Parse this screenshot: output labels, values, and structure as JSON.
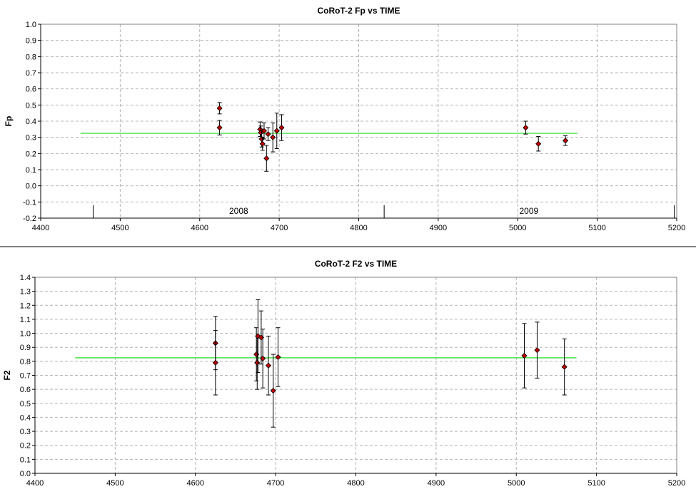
{
  "chart_data": [
    {
      "type": "scatter",
      "title": "CoRoT-2 Fp vs TIME",
      "xlabel": "",
      "ylabel": "Fp",
      "xlim": [
        4400,
        5200
      ],
      "ylim": [
        -0.2,
        1.0
      ],
      "x_ticks": [
        "4400",
        "4500",
        "4600",
        "4700",
        "4800",
        "4900",
        "5000",
        "5100",
        "5200"
      ],
      "y_ticks": [
        "-0.2",
        "-0.1",
        "0.0",
        "0.1",
        "0.2",
        "0.3",
        "0.4",
        "0.5",
        "0.6",
        "0.7",
        "0.8",
        "0.9",
        "1.0"
      ],
      "grid": true,
      "points": [
        {
          "x": 4625,
          "y": 0.48,
          "err": 0.035
        },
        {
          "x": 4625,
          "y": 0.36,
          "err": 0.045
        },
        {
          "x": 4676,
          "y": 0.35,
          "err": 0.045
        },
        {
          "x": 4677,
          "y": 0.33,
          "err": 0.04
        },
        {
          "x": 4678,
          "y": 0.29,
          "err": 0.05
        },
        {
          "x": 4679,
          "y": 0.26,
          "err": 0.04
        },
        {
          "x": 4681,
          "y": 0.34,
          "err": 0.05
        },
        {
          "x": 4684,
          "y": 0.17,
          "err": 0.08
        },
        {
          "x": 4686,
          "y": 0.32,
          "err": 0.04
        },
        {
          "x": 4692,
          "y": 0.3,
          "err": 0.09
        },
        {
          "x": 4697,
          "y": 0.34,
          "err": 0.11
        },
        {
          "x": 4703,
          "y": 0.36,
          "err": 0.08
        },
        {
          "x": 5010,
          "y": 0.36,
          "err": 0.04
        },
        {
          "x": 5026,
          "y": 0.26,
          "err": 0.045
        },
        {
          "x": 5060,
          "y": 0.28,
          "err": 0.03
        }
      ],
      "fit_line": {
        "x": [
          4450,
          5075
        ],
        "y": 0.325,
        "color": "#33dd33"
      },
      "year_markers": {
        "y_range": [
          -0.2,
          -0.12
        ],
        "boundaries": [
          4466,
          4832,
          5197
        ],
        "labels": [
          {
            "x": 4649,
            "text": "2008"
          },
          {
            "x": 5014,
            "text": "2009"
          }
        ]
      },
      "marker_color": "#c00000"
    },
    {
      "type": "scatter",
      "title": "CoRoT-2 F2 vs TIME",
      "xlabel": "",
      "ylabel": "F2",
      "xlim": [
        4400,
        5200
      ],
      "ylim": [
        0.0,
        1.4
      ],
      "x_ticks": [
        "4400",
        "4500",
        "4600",
        "4700",
        "4800",
        "4900",
        "5000",
        "5100",
        "5200"
      ],
      "y_ticks": [
        "0.0",
        "0.1",
        "0.2",
        "0.3",
        "0.4",
        "0.5",
        "0.6",
        "0.7",
        "0.8",
        "0.9",
        "1.0",
        "1.1",
        "1.2",
        "1.3",
        "1.4"
      ],
      "grid": true,
      "points": [
        {
          "x": 4625,
          "y": 0.93,
          "err": 0.19
        },
        {
          "x": 4625,
          "y": 0.79,
          "err": 0.23
        },
        {
          "x": 4676,
          "y": 0.85,
          "err": 0.19
        },
        {
          "x": 4677,
          "y": 0.79,
          "err": 0.19
        },
        {
          "x": 4678,
          "y": 0.98,
          "err": 0.26
        },
        {
          "x": 4682,
          "y": 0.97,
          "err": 0.19
        },
        {
          "x": 4684,
          "y": 0.82,
          "err": 0.21
        },
        {
          "x": 4691,
          "y": 0.77,
          "err": 0.21
        },
        {
          "x": 4697,
          "y": 0.59,
          "err": 0.26
        },
        {
          "x": 4703,
          "y": 0.83,
          "err": 0.21
        },
        {
          "x": 5010,
          "y": 0.84,
          "err": 0.23
        },
        {
          "x": 5026,
          "y": 0.88,
          "err": 0.2
        },
        {
          "x": 5060,
          "y": 0.76,
          "err": 0.2
        }
      ],
      "fit_line": {
        "x": [
          4450,
          5075
        ],
        "y": 0.825,
        "color": "#33dd33"
      },
      "marker_color": "#c00000"
    }
  ]
}
